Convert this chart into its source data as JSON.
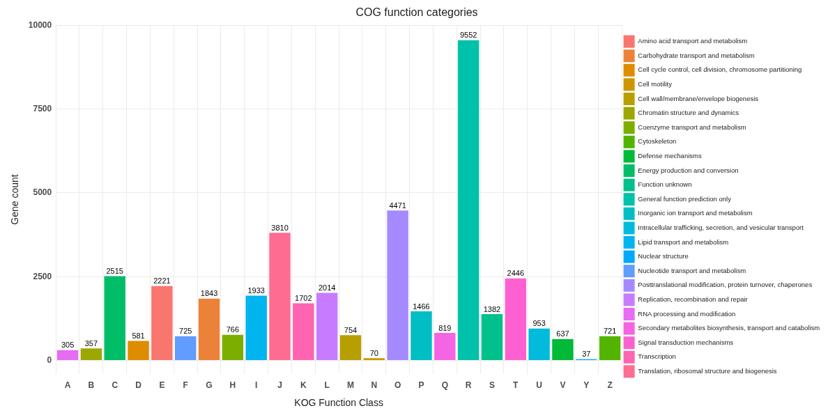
{
  "chart_data": {
    "type": "bar",
    "title": "COG function categories",
    "xlabel": "KOG Function Class",
    "ylabel": "Gene count",
    "categories": [
      "A",
      "B",
      "C",
      "D",
      "E",
      "F",
      "G",
      "H",
      "I",
      "J",
      "K",
      "L",
      "M",
      "N",
      "O",
      "P",
      "Q",
      "R",
      "S",
      "T",
      "U",
      "V",
      "Y",
      "Z"
    ],
    "series": [
      {
        "name": "Amino acid transport and metabolism",
        "color": "#f8766d",
        "values": [
          null,
          null,
          null,
          null,
          2221,
          null,
          null,
          null,
          null,
          null,
          null,
          null,
          null,
          null,
          null,
          null,
          null,
          null,
          null,
          null,
          null,
          null,
          null,
          null
        ]
      },
      {
        "name": "Carbohydrate transport and metabolism",
        "color": "#ec8239",
        "values": [
          null,
          null,
          null,
          null,
          null,
          null,
          1843,
          null,
          null,
          null,
          null,
          null,
          null,
          null,
          null,
          null,
          null,
          null,
          null,
          null,
          null,
          null,
          null,
          null
        ]
      },
      {
        "name": "Cell cycle control, cell division, chromosome partitioning",
        "color": "#de8c00",
        "values": [
          null,
          null,
          null,
          581,
          null,
          null,
          null,
          null,
          null,
          null,
          null,
          null,
          null,
          null,
          null,
          null,
          null,
          null,
          null,
          null,
          null,
          null,
          null,
          null
        ]
      },
      {
        "name": "Cell motility",
        "color": "#cd9600",
        "values": [
          null,
          null,
          null,
          null,
          null,
          null,
          null,
          null,
          null,
          null,
          null,
          null,
          null,
          70,
          null,
          null,
          null,
          null,
          null,
          null,
          null,
          null,
          null,
          null
        ]
      },
      {
        "name": "Cell wall/membrane/envelope biogenesis",
        "color": "#b79f00",
        "values": [
          null,
          null,
          null,
          null,
          null,
          null,
          null,
          null,
          null,
          null,
          null,
          null,
          754,
          null,
          null,
          null,
          null,
          null,
          null,
          null,
          null,
          null,
          null,
          null
        ]
      },
      {
        "name": "Chromatin structure and dynamics",
        "color": "#9da700",
        "values": [
          null,
          357,
          null,
          null,
          null,
          null,
          null,
          null,
          null,
          null,
          null,
          null,
          null,
          null,
          null,
          null,
          null,
          null,
          null,
          null,
          null,
          null,
          null,
          null
        ]
      },
      {
        "name": "Coenzyme transport and metabolism",
        "color": "#7cae00",
        "values": [
          null,
          null,
          null,
          null,
          null,
          null,
          null,
          766,
          null,
          null,
          null,
          null,
          null,
          null,
          null,
          null,
          null,
          null,
          null,
          null,
          null,
          null,
          null,
          null
        ]
      },
      {
        "name": "Cytoskeleton",
        "color": "#53b400",
        "values": [
          null,
          null,
          null,
          null,
          null,
          null,
          null,
          null,
          null,
          null,
          null,
          null,
          null,
          null,
          null,
          null,
          null,
          null,
          null,
          null,
          null,
          null,
          null,
          721
        ]
      },
      {
        "name": "Defense mechanisms",
        "color": "#00ba38",
        "values": [
          null,
          null,
          null,
          null,
          null,
          null,
          null,
          null,
          null,
          null,
          null,
          null,
          null,
          null,
          null,
          null,
          null,
          null,
          null,
          null,
          null,
          637,
          null,
          null
        ]
      },
      {
        "name": "Energy production and conversion",
        "color": "#00be67",
        "values": [
          null,
          null,
          2515,
          null,
          null,
          null,
          null,
          null,
          null,
          null,
          null,
          null,
          null,
          null,
          null,
          null,
          null,
          null,
          null,
          null,
          null,
          null,
          null,
          null
        ]
      },
      {
        "name": "Function unknown",
        "color": "#00c08b",
        "values": [
          null,
          null,
          null,
          null,
          null,
          null,
          null,
          null,
          null,
          null,
          null,
          null,
          null,
          null,
          null,
          null,
          null,
          null,
          1382,
          null,
          null,
          null,
          null,
          null
        ]
      },
      {
        "name": "General function prediction only",
        "color": "#00c1a9",
        "values": [
          null,
          null,
          null,
          null,
          null,
          null,
          null,
          null,
          null,
          null,
          null,
          null,
          null,
          null,
          null,
          null,
          null,
          9552,
          null,
          null,
          null,
          null,
          null,
          null
        ]
      },
      {
        "name": "Inorganic ion transport and metabolism",
        "color": "#00bfc4",
        "values": [
          null,
          null,
          null,
          null,
          null,
          null,
          null,
          null,
          null,
          null,
          null,
          null,
          null,
          null,
          null,
          1466,
          null,
          null,
          null,
          null,
          null,
          null,
          null,
          null
        ]
      },
      {
        "name": "Intracellular trafficking, secretion, and vesicular transport",
        "color": "#00bbdc",
        "values": [
          null,
          null,
          null,
          null,
          null,
          null,
          null,
          null,
          null,
          null,
          null,
          null,
          null,
          null,
          null,
          null,
          null,
          null,
          null,
          null,
          953,
          null,
          null,
          null
        ]
      },
      {
        "name": "Lipid transport and metabolism",
        "color": "#00b4f0",
        "values": [
          null,
          null,
          null,
          null,
          null,
          null,
          null,
          null,
          1933,
          null,
          null,
          null,
          null,
          null,
          null,
          null,
          null,
          null,
          null,
          null,
          null,
          null,
          null,
          null
        ]
      },
      {
        "name": "Nuclear structure",
        "color": "#00a9ff",
        "values": [
          null,
          null,
          null,
          null,
          null,
          null,
          null,
          null,
          null,
          null,
          null,
          null,
          null,
          null,
          null,
          null,
          null,
          null,
          null,
          null,
          null,
          null,
          37,
          null
        ]
      },
      {
        "name": "Nucleotide transport and metabolism",
        "color": "#619cff",
        "values": [
          null,
          null,
          null,
          null,
          null,
          725,
          null,
          null,
          null,
          null,
          null,
          null,
          null,
          null,
          null,
          null,
          null,
          null,
          null,
          null,
          null,
          null,
          null,
          null
        ]
      },
      {
        "name": "Posttranslational modification, protein turnover, chaperones",
        "color": "#a58aff",
        "values": [
          null,
          null,
          null,
          null,
          null,
          null,
          null,
          null,
          null,
          null,
          null,
          null,
          null,
          null,
          4471,
          null,
          null,
          null,
          null,
          null,
          null,
          null,
          null,
          null
        ]
      },
      {
        "name": "Replication, recombination and repair",
        "color": "#c77cff",
        "values": [
          null,
          null,
          null,
          null,
          null,
          null,
          null,
          null,
          null,
          null,
          null,
          2014,
          null,
          null,
          null,
          null,
          null,
          null,
          null,
          null,
          null,
          null,
          null,
          null
        ]
      },
      {
        "name": "RNA processing and modification",
        "color": "#e76bf3",
        "values": [
          305,
          null,
          null,
          null,
          null,
          null,
          null,
          null,
          null,
          null,
          null,
          null,
          null,
          null,
          null,
          null,
          null,
          null,
          null,
          null,
          null,
          null,
          null,
          null
        ]
      },
      {
        "name": "Secondary metabolites biosynthesis, transport and catabolism",
        "color": "#f564e3",
        "values": [
          null,
          null,
          null,
          null,
          null,
          null,
          null,
          null,
          null,
          null,
          null,
          null,
          null,
          null,
          null,
          null,
          819,
          null,
          null,
          null,
          null,
          null,
          null,
          null
        ]
      },
      {
        "name": "Signal transduction mechanisms",
        "color": "#fd61d1",
        "values": [
          null,
          null,
          null,
          null,
          null,
          null,
          null,
          null,
          null,
          null,
          null,
          null,
          null,
          null,
          null,
          null,
          null,
          null,
          null,
          2446,
          null,
          null,
          null,
          null
        ]
      },
      {
        "name": "Transcription",
        "color": "#ff64b0",
        "values": [
          null,
          null,
          null,
          null,
          null,
          null,
          null,
          null,
          null,
          null,
          1702,
          null,
          null,
          null,
          null,
          null,
          null,
          null,
          null,
          null,
          null,
          null,
          null,
          null
        ]
      },
      {
        "name": "Translation, ribosomal structure and biogenesis",
        "color": "#ff6c91",
        "values": [
          null,
          null,
          null,
          null,
          null,
          null,
          null,
          null,
          null,
          3810,
          null,
          null,
          null,
          null,
          null,
          null,
          null,
          null,
          null,
          null,
          null,
          null,
          null,
          null
        ]
      }
    ],
    "ylim": [
      -400,
      10000
    ],
    "yticks": [
      0,
      2500,
      5000,
      7500,
      10000
    ],
    "grid": true,
    "legend": "right",
    "data_labels": true
  }
}
